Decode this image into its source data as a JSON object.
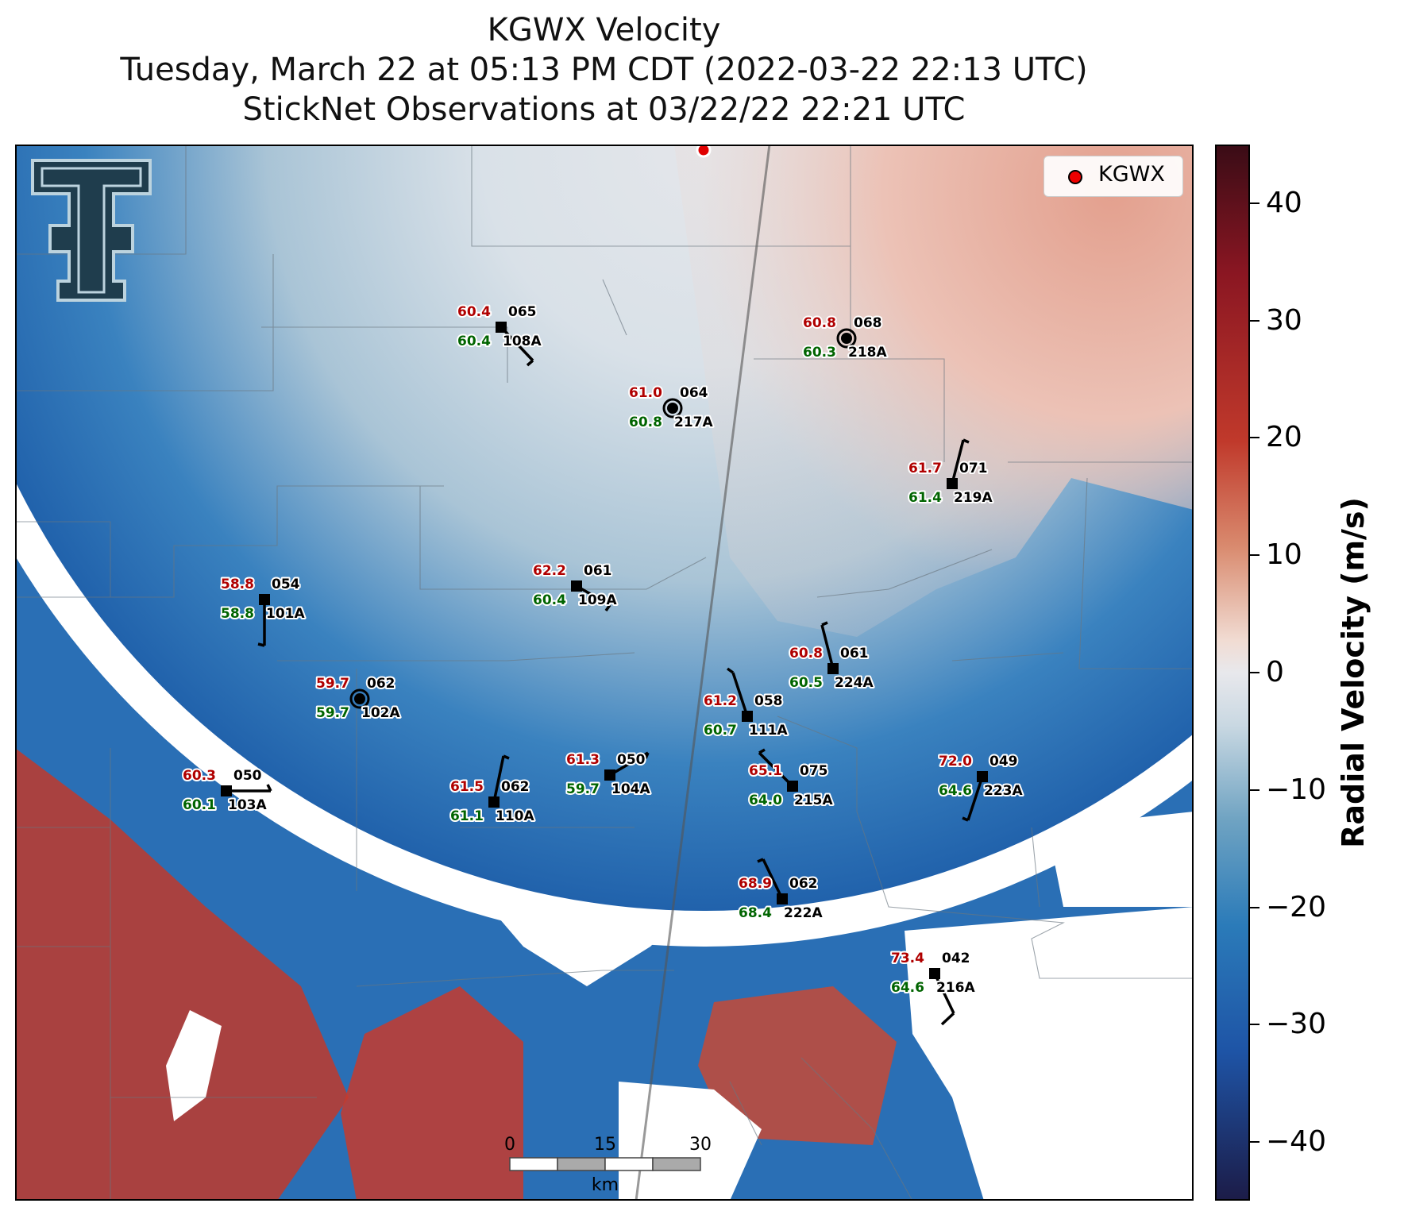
{
  "title": {
    "line1": "KGWX Velocity",
    "line2": "Tuesday, March 22 at 05:13 PM CDT (2022-03-22 22:13 UTC)",
    "line3": "StickNet Observations at 03/22/22 22:21 UTC"
  },
  "legend": {
    "label": "KGWX",
    "marker_color": "#e00000"
  },
  "colorbar": {
    "label": "Radial Velocity (m/s)",
    "min": -45,
    "max": 45,
    "ticks": [
      40,
      30,
      20,
      10,
      0,
      -10,
      -20,
      -30,
      -40
    ],
    "tick_labels": [
      "40",
      "30",
      "20",
      "10",
      "0",
      "−10",
      "−20",
      "−30",
      "−40"
    ]
  },
  "scalebar": {
    "labels": [
      "0",
      "15",
      "30"
    ],
    "unit": "km"
  },
  "logo": {
    "name": "texas-tech-double-t-logo",
    "colors": [
      "#1f3d4d",
      "#bcd3de"
    ]
  },
  "stations": [
    {
      "id": "108A",
      "temp": "60.4",
      "dew": "60.4",
      "pres": "065",
      "marker": "square"
    },
    {
      "id": "218A",
      "temp": "60.8",
      "dew": "60.3",
      "pres": "068",
      "marker": "calm"
    },
    {
      "id": "217A",
      "temp": "61.0",
      "dew": "60.8",
      "pres": "064",
      "marker": "calm"
    },
    {
      "id": "219A",
      "temp": "61.7",
      "dew": "61.4",
      "pres": "071",
      "marker": "square"
    },
    {
      "id": "101A",
      "temp": "58.8",
      "dew": "58.8",
      "pres": "054",
      "marker": "square"
    },
    {
      "id": "109A",
      "temp": "62.2",
      "dew": "60.4",
      "pres": "061",
      "marker": "square"
    },
    {
      "id": "224A",
      "temp": "60.8",
      "dew": "60.5",
      "pres": "061",
      "marker": "square"
    },
    {
      "id": "102A",
      "temp": "59.7",
      "dew": "59.7",
      "pres": "062",
      "marker": "calm"
    },
    {
      "id": "111A",
      "temp": "61.2",
      "dew": "60.7",
      "pres": "058",
      "marker": "square"
    },
    {
      "id": "103A",
      "temp": "60.3",
      "dew": "60.1",
      "pres": "050",
      "marker": "square"
    },
    {
      "id": "104A",
      "temp": "61.3",
      "dew": "59.7",
      "pres": "050",
      "marker": "square"
    },
    {
      "id": "110A",
      "temp": "61.5",
      "dew": "61.1",
      "pres": "062",
      "marker": "square"
    },
    {
      "id": "215A",
      "temp": "65.1",
      "dew": "64.0",
      "pres": "075",
      "marker": "square"
    },
    {
      "id": "223A",
      "temp": "72.0",
      "dew": "64.6",
      "pres": "049",
      "marker": "square"
    },
    {
      "id": "222A",
      "temp": "68.9",
      "dew": "68.4",
      "pres": "062",
      "marker": "square"
    },
    {
      "id": "216A",
      "temp": "73.4",
      "dew": "64.6",
      "pres": "042",
      "marker": "square"
    }
  ]
}
